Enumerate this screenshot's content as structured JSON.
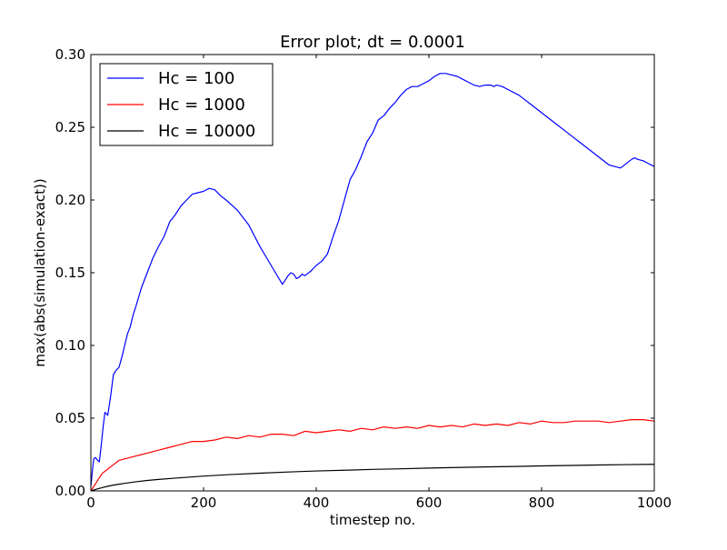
{
  "chart_data": {
    "type": "line",
    "title": "Error plot; dt = 0.0001",
    "xlabel": "timestep no.",
    "ylabel": "max(abs(simulation-exact))",
    "xlim": [
      0,
      1000
    ],
    "ylim": [
      0,
      0.3
    ],
    "xticks": [
      0,
      200,
      400,
      600,
      800,
      1000
    ],
    "xtick_labels": [
      "0",
      "200",
      "400",
      "600",
      "800",
      "1000"
    ],
    "yticks": [
      0,
      0.05,
      0.1,
      0.15,
      0.2,
      0.25,
      0.3
    ],
    "ytick_labels": [
      "0.00",
      "0.05",
      "0.10",
      "0.15",
      "0.20",
      "0.25",
      "0.30"
    ],
    "grid": false,
    "legend_position": "top-left",
    "series": [
      {
        "name": "Hc = 100",
        "color": "#0000ff",
        "x": [
          0,
          3,
          5,
          8,
          12,
          15,
          18,
          22,
          25,
          30,
          35,
          40,
          45,
          50,
          55,
          60,
          65,
          70,
          75,
          80,
          90,
          100,
          110,
          120,
          130,
          140,
          150,
          160,
          170,
          180,
          190,
          200,
          210,
          220,
          230,
          240,
          260,
          280,
          300,
          320,
          340,
          350,
          355,
          360,
          365,
          370,
          375,
          380,
          390,
          400,
          410,
          420,
          430,
          440,
          450,
          460,
          470,
          480,
          490,
          500,
          510,
          520,
          530,
          540,
          550,
          560,
          570,
          580,
          590,
          600,
          610,
          620,
          630,
          640,
          650,
          660,
          670,
          680,
          690,
          700,
          710,
          715,
          720,
          730,
          740,
          760,
          780,
          800,
          820,
          840,
          860,
          880,
          900,
          920,
          940,
          960,
          965,
          970,
          980,
          990,
          1000
        ],
        "y": [
          0.003,
          0.015,
          0.022,
          0.023,
          0.021,
          0.02,
          0.03,
          0.045,
          0.054,
          0.052,
          0.065,
          0.08,
          0.083,
          0.085,
          0.092,
          0.1,
          0.108,
          0.113,
          0.121,
          0.127,
          0.14,
          0.15,
          0.16,
          0.168,
          0.175,
          0.185,
          0.19,
          0.196,
          0.2,
          0.204,
          0.205,
          0.206,
          0.208,
          0.207,
          0.203,
          0.2,
          0.193,
          0.183,
          0.168,
          0.155,
          0.142,
          0.148,
          0.15,
          0.149,
          0.146,
          0.147,
          0.149,
          0.148,
          0.151,
          0.155,
          0.158,
          0.163,
          0.175,
          0.186,
          0.2,
          0.214,
          0.221,
          0.23,
          0.24,
          0.246,
          0.255,
          0.258,
          0.263,
          0.267,
          0.272,
          0.276,
          0.278,
          0.278,
          0.28,
          0.282,
          0.285,
          0.287,
          0.287,
          0.286,
          0.285,
          0.283,
          0.281,
          0.279,
          0.278,
          0.279,
          0.279,
          0.278,
          0.279,
          0.278,
          0.276,
          0.272,
          0.266,
          0.26,
          0.254,
          0.248,
          0.242,
          0.236,
          0.23,
          0.224,
          0.222,
          0.228,
          0.229,
          0.228,
          0.227,
          0.225,
          0.223
        ]
      },
      {
        "name": "Hc = 1000",
        "color": "#ff0000",
        "x": [
          0,
          5,
          10,
          15,
          20,
          30,
          40,
          50,
          60,
          70,
          80,
          90,
          100,
          120,
          140,
          160,
          180,
          200,
          220,
          240,
          260,
          280,
          300,
          320,
          340,
          360,
          380,
          400,
          420,
          440,
          460,
          480,
          500,
          520,
          540,
          560,
          580,
          600,
          620,
          640,
          660,
          680,
          700,
          720,
          740,
          760,
          780,
          800,
          820,
          840,
          860,
          880,
          900,
          920,
          940,
          960,
          980,
          1000
        ],
        "y": [
          0.0,
          0.003,
          0.006,
          0.009,
          0.012,
          0.015,
          0.018,
          0.021,
          0.022,
          0.023,
          0.024,
          0.025,
          0.026,
          0.028,
          0.03,
          0.032,
          0.034,
          0.034,
          0.035,
          0.037,
          0.036,
          0.038,
          0.037,
          0.039,
          0.039,
          0.038,
          0.041,
          0.04,
          0.041,
          0.042,
          0.041,
          0.043,
          0.042,
          0.044,
          0.043,
          0.044,
          0.043,
          0.045,
          0.044,
          0.045,
          0.044,
          0.046,
          0.045,
          0.046,
          0.045,
          0.047,
          0.046,
          0.048,
          0.047,
          0.047,
          0.048,
          0.048,
          0.048,
          0.047,
          0.048,
          0.049,
          0.049,
          0.048
        ]
      },
      {
        "name": "Hc = 10000",
        "color": "#000000",
        "x": [
          0,
          10,
          20,
          30,
          40,
          50,
          60,
          80,
          100,
          120,
          150,
          200,
          250,
          300,
          350,
          400,
          450,
          500,
          550,
          600,
          650,
          700,
          750,
          800,
          850,
          900,
          950,
          1000
        ],
        "y": [
          0.0,
          0.0012,
          0.0022,
          0.0032,
          0.004,
          0.0046,
          0.0052,
          0.0063,
          0.0072,
          0.0079,
          0.0088,
          0.0102,
          0.0113,
          0.0122,
          0.013,
          0.0137,
          0.0142,
          0.0148,
          0.0152,
          0.0157,
          0.0161,
          0.0165,
          0.0168,
          0.0172,
          0.0175,
          0.0178,
          0.0181,
          0.0183
        ]
      }
    ]
  }
}
